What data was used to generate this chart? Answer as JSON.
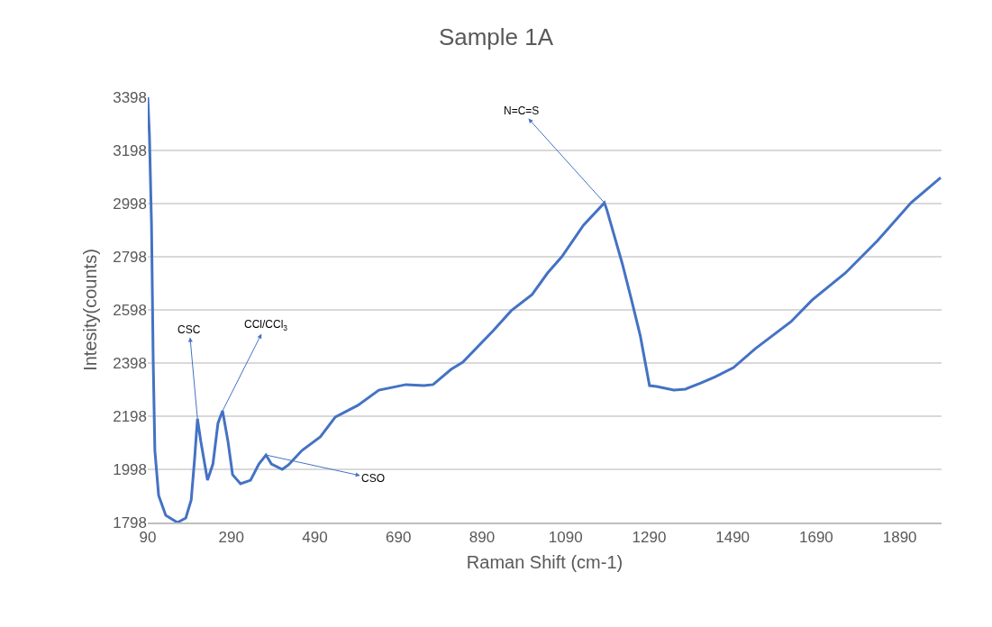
{
  "chart_data": {
    "type": "line",
    "title": "Sample 1A",
    "xlabel": "Raman Shift (cm-1)",
    "ylabel": "Intesity(counts)",
    "xlim": [
      90,
      1990
    ],
    "xticks": [
      90,
      290,
      490,
      690,
      890,
      1090,
      1290,
      1490,
      1690,
      1890
    ],
    "ylim": [
      1798,
      3398
    ],
    "yticks": [
      1798,
      1998,
      2198,
      2398,
      2598,
      2798,
      2998,
      3198,
      3398
    ],
    "grid": "y",
    "marker": "none",
    "line_style": "solid",
    "series": [
      {
        "color": "#4472c4",
        "x": [
          90,
          94,
          99,
          103,
          107,
          116,
          133,
          161,
          181,
          194,
          202,
          209,
          217,
          233,
          246,
          258,
          269,
          282,
          293,
          312,
          336,
          356,
          373,
          386,
          412,
          427,
          459,
          503,
          539,
          593,
          643,
          708,
          751,
          773,
          816,
          844,
          917,
          960,
          1010,
          1047,
          1081,
          1133,
          1183,
          1189,
          1226,
          1248,
          1269,
          1291,
          1308,
          1349,
          1377,
          1414,
          1449,
          1492,
          1544,
          1630,
          1680,
          1760,
          1837,
          1917,
          1988
        ],
        "values": [
          3398,
          3256,
          2917,
          2408,
          2069,
          1900,
          1825,
          1798,
          1815,
          1883,
          2035,
          2188,
          2103,
          1957,
          2018,
          2171,
          2218,
          2103,
          1978,
          1944,
          1957,
          2018,
          2052,
          2018,
          1998,
          2015,
          2069,
          2120,
          2195,
          2239,
          2296,
          2317,
          2313,
          2317,
          2374,
          2401,
          2520,
          2595,
          2656,
          2737,
          2798,
          2917,
          3001,
          2974,
          2771,
          2635,
          2500,
          2313,
          2310,
          2296,
          2300,
          2323,
          2347,
          2381,
          2452,
          2554,
          2635,
          2737,
          2859,
          3001,
          3096
        ]
      }
    ],
    "annotations": [
      {
        "text": "CSC",
        "x": 209,
        "y": 2188
      },
      {
        "text": "CCl/CCl$_{3}$",
        "x": 269,
        "y": 2218
      },
      {
        "text": "CSO",
        "x": 373,
        "y": 2052
      },
      {
        "text": "N=C=S",
        "x": 1183,
        "y": 3001
      }
    ]
  }
}
